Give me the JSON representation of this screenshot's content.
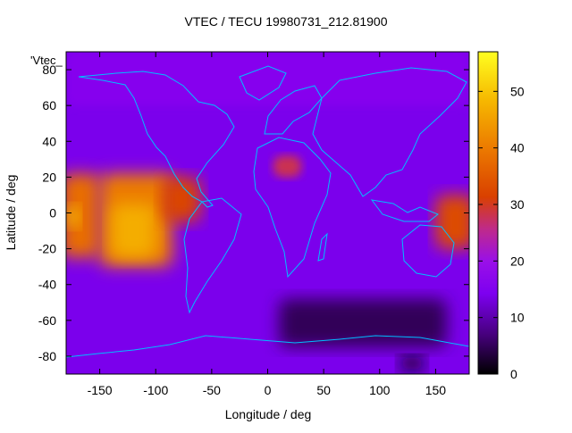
{
  "chart_data": {
    "type": "heatmap",
    "title": "VTEC / TECU 19980731_212.81900",
    "xlabel": "Longitude / deg",
    "ylabel": "Latitude / deg",
    "legend_label": "'Vtec_",
    "legend_placement": "top-left",
    "xlim": [
      -180,
      180
    ],
    "ylim": [
      -90,
      90
    ],
    "xticks": [
      -150,
      -100,
      -50,
      0,
      50,
      100,
      150
    ],
    "yticks": [
      -80,
      -60,
      -40,
      -20,
      0,
      20,
      40,
      60,
      80
    ],
    "colorbar": {
      "range": [
        0,
        57
      ],
      "ticks": [
        0,
        10,
        20,
        30,
        40,
        50
      ],
      "colormap": "gnuplot-pm3d"
    },
    "field_regions": [
      {
        "name": "background",
        "value": 14
      },
      {
        "name": "pacific-enhancement-west",
        "lon": [
          -185,
          -150
        ],
        "lat": [
          -25,
          22
        ],
        "value": 38
      },
      {
        "name": "pacific-peak-west",
        "lon": [
          -180,
          -168
        ],
        "lat": [
          -8,
          4
        ],
        "value": 50
      },
      {
        "name": "pacific-enhancement-east",
        "lon": [
          -150,
          -85
        ],
        "lat": [
          -30,
          22
        ],
        "value": 40
      },
      {
        "name": "pacific-peak-east",
        "lon": [
          -140,
          -100
        ],
        "lat": [
          -25,
          5
        ],
        "value": 47
      },
      {
        "name": "central-america-tongue",
        "lon": [
          -95,
          -60
        ],
        "lat": [
          -5,
          20
        ],
        "value": 32
      },
      {
        "name": "west-pacific-enhancement",
        "lon": [
          150,
          185
        ],
        "lat": [
          -20,
          10
        ],
        "value": 33
      },
      {
        "name": "north-africa-patch",
        "lon": [
          5,
          30
        ],
        "lat": [
          20,
          32
        ],
        "value": 28
      },
      {
        "name": "southern-depletion",
        "lon": [
          10,
          160
        ],
        "lat": [
          -75,
          -48
        ],
        "value": 5
      },
      {
        "name": "antarctic-minimum",
        "lon": [
          118,
          140
        ],
        "lat": [
          -88,
          -80
        ],
        "value": 1
      },
      {
        "name": "north-polar-band",
        "lon": [
          -180,
          180
        ],
        "lat": [
          60,
          90
        ],
        "value": 16
      }
    ]
  }
}
